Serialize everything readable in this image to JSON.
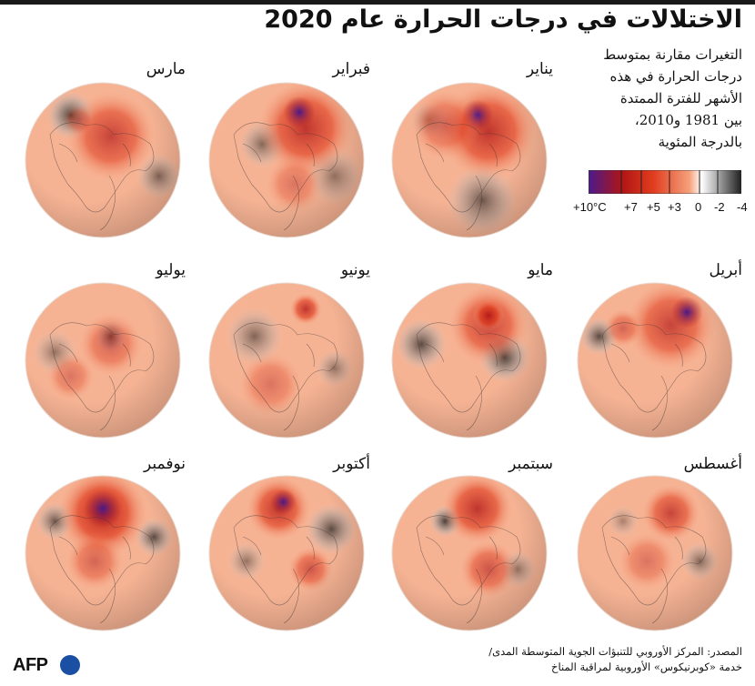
{
  "title": "الاختلالات في درجات الحرارة عام 2020",
  "subtitle_lines": [
    "التغيرات مقارنة بمتوسط",
    "درجات الحرارة في هذه",
    "الأشهر للفترة الممتدة",
    "بين 1981 و2010،",
    "بالدرجة المئوية"
  ],
  "legend": {
    "ticks": [
      "+10°C",
      "+7",
      "+5",
      "+3",
      "0",
      "-2",
      "-4"
    ],
    "colors": {
      "plus10": "#4a1a8c",
      "plus7": "#b01515",
      "plus5": "#e03c1e",
      "plus3": "#f5a07a",
      "zero": "#ffffff",
      "minus2": "#9a9a9a",
      "minus4": "#1f1f1f"
    }
  },
  "months": [
    {
      "name": "يناير",
      "hot": [
        [
          0.62,
          0.32,
          0.3,
          0.8
        ],
        [
          0.55,
          0.22,
          0.1,
          1.0
        ],
        [
          0.35,
          0.28,
          0.22,
          0.5
        ]
      ],
      "cold": [
        [
          0.58,
          0.75,
          0.22,
          0.7
        ],
        [
          0.25,
          0.25,
          0.12,
          0.4
        ]
      ]
    },
    {
      "name": "فبراير",
      "hot": [
        [
          0.62,
          0.3,
          0.3,
          0.8
        ],
        [
          0.58,
          0.2,
          0.1,
          1.0
        ],
        [
          0.55,
          0.65,
          0.18,
          0.4
        ]
      ],
      "cold": [
        [
          0.35,
          0.4,
          0.15,
          0.6
        ],
        [
          0.8,
          0.6,
          0.18,
          0.5
        ]
      ]
    },
    {
      "name": "مارس",
      "hot": [
        [
          0.55,
          0.35,
          0.28,
          0.7
        ],
        [
          0.35,
          0.25,
          0.1,
          0.4
        ]
      ],
      "cold": [
        [
          0.3,
          0.22,
          0.15,
          0.9
        ],
        [
          0.85,
          0.6,
          0.14,
          0.6
        ]
      ]
    },
    {
      "name": "أبريل",
      "hot": [
        [
          0.6,
          0.28,
          0.28,
          0.7
        ],
        [
          0.7,
          0.2,
          0.1,
          1.0
        ],
        [
          0.3,
          0.3,
          0.12,
          0.5
        ]
      ],
      "cold": [
        [
          0.15,
          0.35,
          0.12,
          0.8
        ]
      ]
    },
    {
      "name": "مايو",
      "hot": [
        [
          0.62,
          0.28,
          0.25,
          0.7
        ],
        [
          0.62,
          0.22,
          0.1,
          0.9
        ]
      ],
      "cold": [
        [
          0.2,
          0.4,
          0.16,
          0.8
        ],
        [
          0.72,
          0.48,
          0.16,
          0.9
        ]
      ]
    },
    {
      "name": "يونيو",
      "hot": [
        [
          0.62,
          0.18,
          0.1,
          0.8
        ],
        [
          0.4,
          0.65,
          0.2,
          0.4
        ]
      ],
      "cold": [
        [
          0.3,
          0.35,
          0.18,
          0.6
        ],
        [
          0.8,
          0.55,
          0.12,
          0.5
        ]
      ]
    },
    {
      "name": "يوليو",
      "hot": [
        [
          0.55,
          0.4,
          0.2,
          0.5
        ],
        [
          0.3,
          0.6,
          0.15,
          0.4
        ]
      ],
      "cold": [
        [
          0.55,
          0.35,
          0.1,
          0.8
        ],
        [
          0.2,
          0.45,
          0.14,
          0.5
        ]
      ]
    },
    {
      "name": "أغسطس",
      "hot": [
        [
          0.6,
          0.25,
          0.18,
          0.7
        ],
        [
          0.45,
          0.55,
          0.18,
          0.4
        ]
      ],
      "cold": [
        [
          0.78,
          0.55,
          0.12,
          0.6
        ],
        [
          0.3,
          0.3,
          0.1,
          0.4
        ]
      ]
    },
    {
      "name": "سبتمبر",
      "hot": [
        [
          0.55,
          0.22,
          0.22,
          0.8
        ],
        [
          0.62,
          0.6,
          0.18,
          0.6
        ]
      ],
      "cold": [
        [
          0.35,
          0.3,
          0.1,
          0.9
        ],
        [
          0.8,
          0.6,
          0.12,
          0.5
        ]
      ]
    },
    {
      "name": "أكتوبر",
      "hot": [
        [
          0.45,
          0.22,
          0.2,
          0.8
        ],
        [
          0.48,
          0.18,
          0.08,
          1.0
        ],
        [
          0.65,
          0.6,
          0.14,
          0.6
        ]
      ],
      "cold": [
        [
          0.78,
          0.35,
          0.16,
          0.8
        ],
        [
          0.25,
          0.55,
          0.12,
          0.5
        ]
      ]
    },
    {
      "name": "نوفمبر",
      "hot": [
        [
          0.5,
          0.25,
          0.28,
          0.9
        ],
        [
          0.5,
          0.22,
          0.12,
          1.0
        ],
        [
          0.45,
          0.55,
          0.18,
          0.5
        ]
      ],
      "cold": [
        [
          0.2,
          0.3,
          0.12,
          0.7
        ],
        [
          0.82,
          0.4,
          0.12,
          0.8
        ]
      ]
    }
  ],
  "source_lines": [
    "المصدر: المركز الأوروبي للتنبؤات الجوية المتوسطة المدى/",
    "خدمة «كوبرنيكوس» الأوروبية لمراقبة المناخ"
  ],
  "logo": "AFP"
}
